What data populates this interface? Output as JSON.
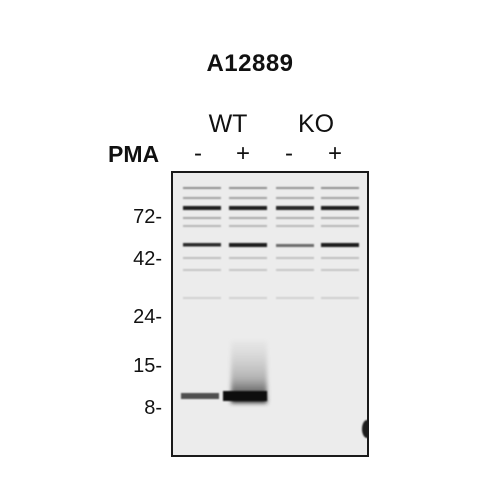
{
  "title": "A12889",
  "groups": [
    {
      "label": "WT"
    },
    {
      "label": "KO"
    }
  ],
  "treatment_label": "PMA",
  "lanes": [
    {
      "sign": "-"
    },
    {
      "sign": "+"
    },
    {
      "sign": "-"
    },
    {
      "sign": "+"
    }
  ],
  "markers": [
    {
      "label": "72-",
      "kda": 72
    },
    {
      "label": "42-",
      "kda": 42
    },
    {
      "label": "24-",
      "kda": 24
    },
    {
      "label": "15-",
      "kda": 15
    },
    {
      "label": "8-",
      "kda": 8
    }
  ],
  "colors": {
    "membrane": "#ececec",
    "band": "#1a1a1a",
    "frame": "#1a1a1a"
  }
}
